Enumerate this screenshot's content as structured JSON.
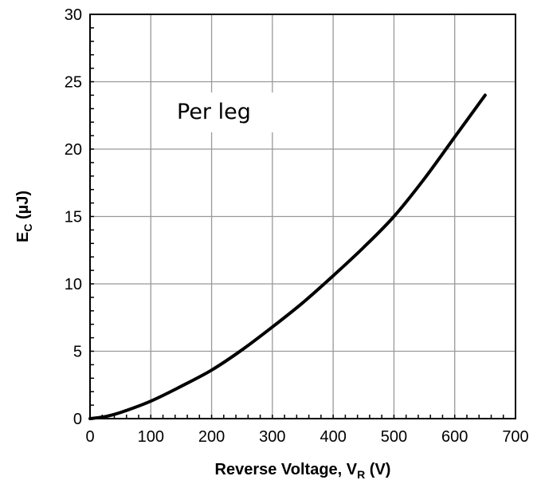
{
  "chart_data": {
    "type": "line",
    "title": "",
    "xlabel": "Reverse Voltage, V",
    "xlabel_sub": "R",
    "xlabel_unit": " (V)",
    "ylabel": "E",
    "ylabel_sub": "C",
    "ylabel_unit": " (µJ)",
    "xlim": [
      0,
      700
    ],
    "ylim": [
      0,
      30
    ],
    "xticks": [
      0,
      100,
      200,
      300,
      400,
      500,
      600,
      700
    ],
    "yticks": [
      0,
      5,
      10,
      15,
      20,
      25,
      30
    ],
    "grid": true,
    "annotation": "Per leg",
    "series": [
      {
        "color": "#000000",
        "x": [
          0,
          25,
          50,
          100,
          150,
          200,
          250,
          300,
          350,
          400,
          450,
          500,
          550,
          600,
          650
        ],
        "y": [
          0,
          0.15,
          0.45,
          1.3,
          2.4,
          3.6,
          5.1,
          6.8,
          8.6,
          10.6,
          12.7,
          15.0,
          17.8,
          20.9,
          24.0
        ]
      }
    ]
  }
}
